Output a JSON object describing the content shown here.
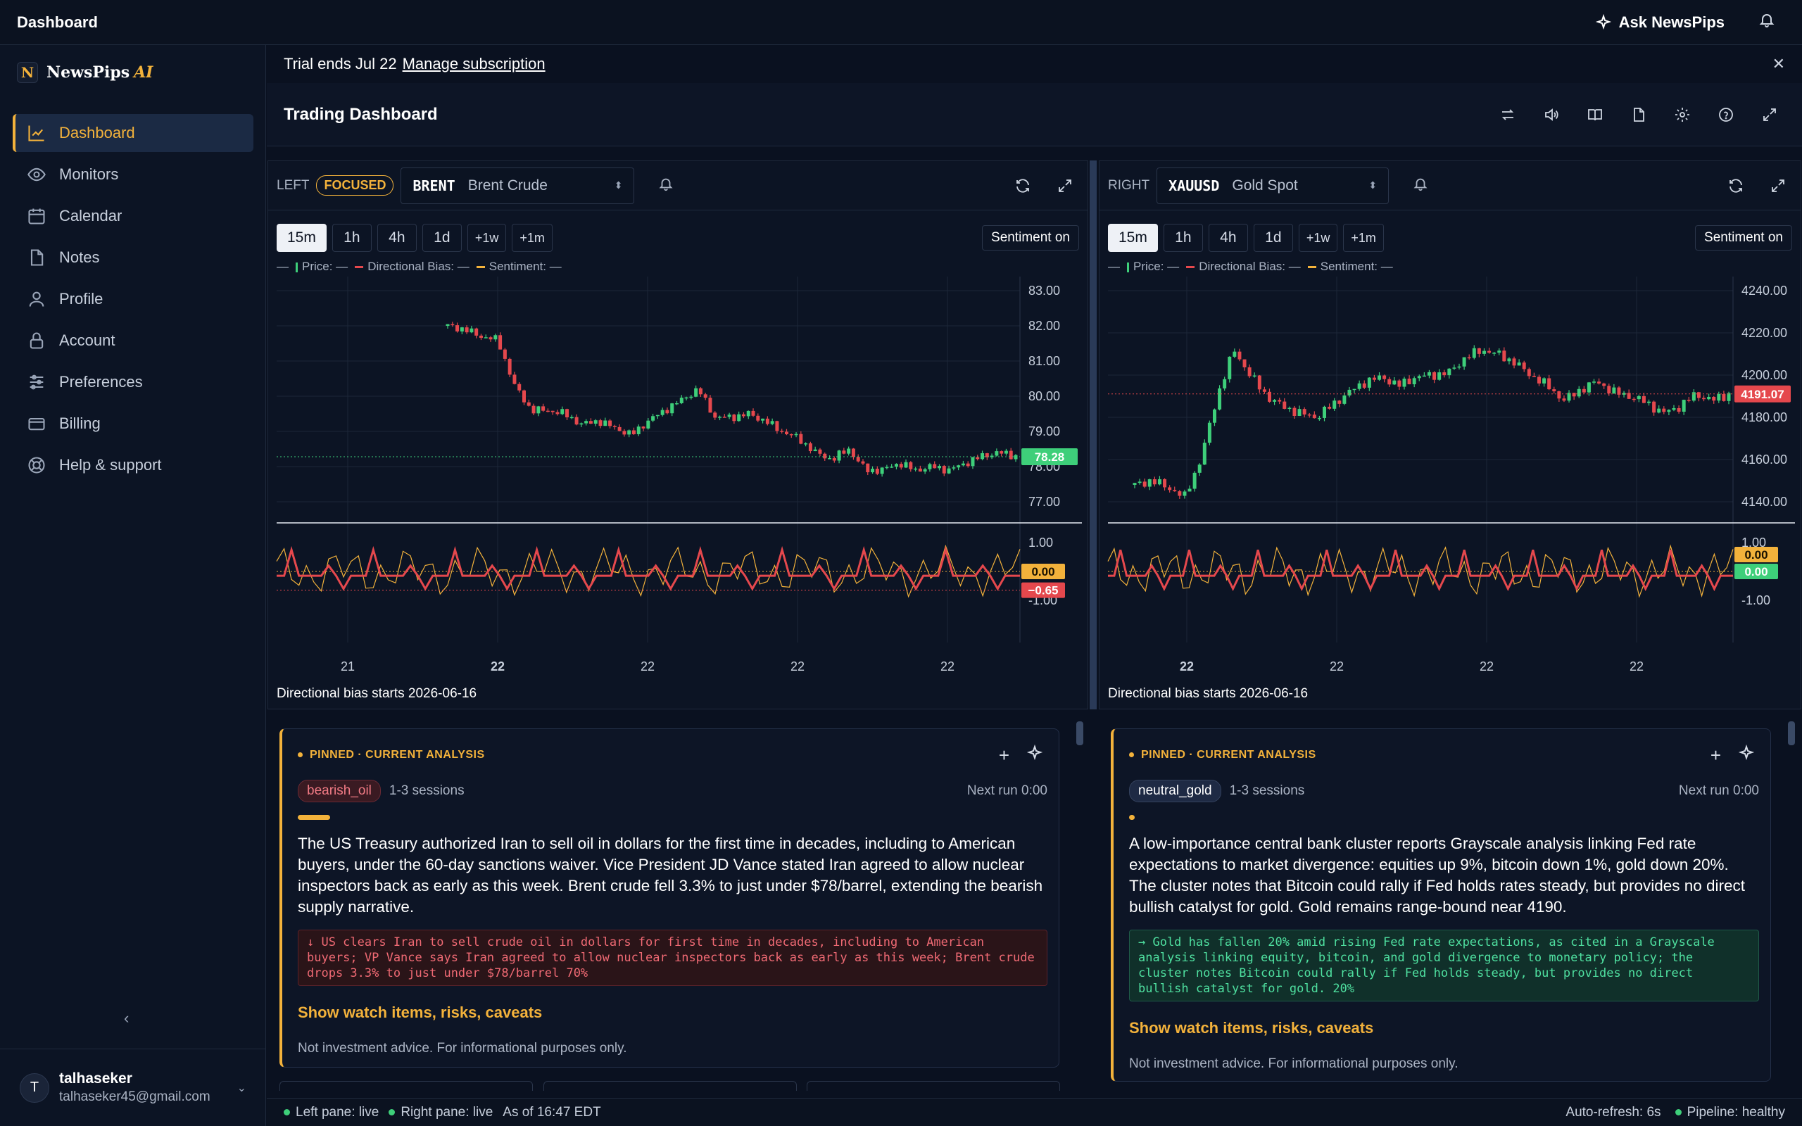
{
  "topbar": {
    "title": "Dashboard",
    "ask_label": "Ask NewsPips"
  },
  "brand": {
    "mark": "N",
    "name": "NewsPips",
    "ai": "AI"
  },
  "sidebar": {
    "items": [
      {
        "label": "Dashboard",
        "icon": "chart-line-icon"
      },
      {
        "label": "Monitors",
        "icon": "eye-icon"
      },
      {
        "label": "Calendar",
        "icon": "calendar-icon"
      },
      {
        "label": "Notes",
        "icon": "note-icon"
      },
      {
        "label": "Profile",
        "icon": "user-icon"
      },
      {
        "label": "Account",
        "icon": "lock-icon"
      },
      {
        "label": "Preferences",
        "icon": "sliders-icon"
      },
      {
        "label": "Billing",
        "icon": "card-icon"
      },
      {
        "label": "Help & support",
        "icon": "lifebuoy-icon"
      }
    ],
    "collapse": "‹"
  },
  "user": {
    "initial": "T",
    "name": "talhaseker",
    "email": "talhaseker45@gmail.com"
  },
  "trial": {
    "text": "Trial ends Jul 22",
    "link": "Manage subscription"
  },
  "dashboard": {
    "title": "Trading Dashboard"
  },
  "left": {
    "side": "LEFT",
    "focused": "FOCUSED",
    "ticker": "BRENT",
    "name": "Brent Crude",
    "timeframes": [
      "15m",
      "1h",
      "4h",
      "1d",
      "+1w",
      "+1m"
    ],
    "selected_tf": "15m",
    "sentiment_btn": "Sentiment on",
    "legend": {
      "dash": "—",
      "price": "Price: —",
      "bias": "Directional Bias: —",
      "sentiment": "Sentiment: —"
    },
    "bias_start": "Directional bias starts 2026-06-16"
  },
  "right": {
    "side": "RIGHT",
    "ticker": "XAUUSD",
    "name": "Gold Spot",
    "timeframes": [
      "15m",
      "1h",
      "4h",
      "1d",
      "+1w",
      "+1m"
    ],
    "selected_tf": "15m",
    "sentiment_btn": "Sentiment on",
    "legend": {
      "dash": "—",
      "price": "Price: —",
      "bias": "Directional Bias: —",
      "sentiment": "Sentiment: —"
    },
    "bias_start": "Directional bias starts 2026-06-16"
  },
  "chart_data": [
    {
      "type": "candlestick",
      "name": "BRENT",
      "price_axis": [
        83.0,
        82.0,
        81.0,
        80.0,
        79.0,
        78.0,
        77.0
      ],
      "last_price": "78.28",
      "close_path": [
        82.0,
        81.9,
        81.7,
        81.6,
        80.3,
        79.6,
        79.6,
        79.5,
        79.2,
        79.3,
        79.1,
        78.9,
        79.3,
        79.6,
        79.9,
        80.2,
        79.4,
        79.4,
        79.5,
        79.3,
        79.0,
        78.8,
        78.4,
        78.2,
        78.5,
        77.9,
        77.9,
        78.1,
        77.9,
        78.0,
        77.9,
        78.1,
        78.3,
        78.4,
        78.3
      ],
      "bias_axis": [
        1.0,
        -1.0
      ],
      "bias_labels": [
        "0.00",
        "−0.65"
      ],
      "x_ticks": [
        "21",
        "22",
        "22",
        "22",
        "22"
      ],
      "bold_x_tick": 1
    },
    {
      "type": "candlestick",
      "name": "XAUUSD",
      "price_axis": [
        4240.0,
        4220.0,
        4200.0,
        4180.0,
        4160.0,
        4140.0
      ],
      "last_price": "4191.07",
      "close_path": [
        4148,
        4150,
        4147,
        4142,
        4160,
        4190,
        4212,
        4200,
        4190,
        4185,
        4182,
        4180,
        4186,
        4192,
        4197,
        4199,
        4195,
        4199,
        4200,
        4201,
        4208,
        4212,
        4210,
        4206,
        4200,
        4195,
        4188,
        4193,
        4197,
        4192,
        4190,
        4187,
        4182,
        4185,
        4191,
        4188,
        4191
      ],
      "bias_axis": [
        1.0,
        -1.0
      ],
      "bias_labels": [
        "0.00",
        "0.00"
      ],
      "x_ticks": [
        "22",
        "22",
        "22",
        "22"
      ],
      "bold_x_tick": 0
    }
  ],
  "analysisL": {
    "pinned": "PINNED · CURRENT ANALYSIS",
    "tag": "bearish_oil",
    "sessions": "1-3 sessions",
    "next_run": "Next run 0:00",
    "strength": 0.07,
    "text": "The US Treasury authorized Iran to sell oil in dollars for the first time in decades, including to American buyers, under the 60-day sanctions waiver. Vice President JD Vance stated Iran agreed to allow nuclear inspectors back as early as this week. Brent crude fell 3.3% to just under $78/barrel, extending the bearish supply narrative.",
    "quote": "↓ US clears Iran to sell crude oil in dollars for first time in decades, including to American buyers; VP Vance says Iran agreed to allow nuclear inspectors back as early as this week; Brent crude drops 3.3% to just under $78/barrel 70%",
    "watch": "Show watch items, risks, caveats",
    "disclaimer": "Not investment advice. For informational purposes only."
  },
  "analysisR": {
    "pinned": "PINNED · CURRENT ANALYSIS",
    "tag": "neutral_gold",
    "sessions": "1-3 sessions",
    "next_run": "Next run 0:00",
    "strength": 0.01,
    "text": "A low-importance central bank cluster reports Grayscale analysis linking Fed rate expectations to market divergence: equities up 9%, bitcoin down 1%, gold down 20%. The cluster notes that Bitcoin could rally if Fed holds rates steady, but provides no direct bullish catalyst for gold. Gold remains range-bound near 4190.",
    "quote": "→ Gold has fallen 20% amid rising Fed rate expectations, as cited in a Grayscale analysis linking equity, bitcoin, and gold divergence to monetary policy; the cluster notes Bitcoin could rally if Fed holds steady, but provides no direct bullish catalyst for gold. 20%",
    "watch": "Show watch items, risks, caveats",
    "disclaimer": "Not investment advice. For informational purposes only."
  },
  "status": {
    "left": "Left pane: live",
    "right": "Right pane: live",
    "asof": "As of 16:47 EDT",
    "refresh": "Auto-refresh: 6s",
    "pipeline": "Pipeline: healthy"
  },
  "colors": {
    "accent": "#f3b23b",
    "up": "#3ecf7a",
    "down": "#e5484d",
    "sentiment": "#f3b23b"
  }
}
